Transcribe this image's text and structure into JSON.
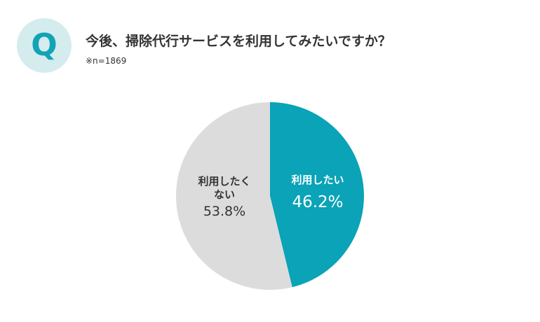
{
  "header": {
    "badge_letter": "Q",
    "question": "今後、掃除代行サービスを利用してみたいですか？",
    "sample_note": "※n=1869"
  },
  "colors": {
    "badge_background": "#d4ecee",
    "badge_text": "#12a3b6",
    "slice_yes": "#0aa3b7",
    "slice_no": "#dcdcdc",
    "label_on_teal": "#ffffff",
    "label_on_gray": "#333333"
  },
  "chart_data": {
    "type": "pie",
    "title": "今後、掃除代行サービスを利用してみたいですか？",
    "slices": [
      {
        "label_lines": [
          "利用したい"
        ],
        "value": 46.2,
        "value_label": "46.2%",
        "color": "#0aa3b7",
        "label_color": "#ffffff"
      },
      {
        "label_lines": [
          "利用したく",
          "ない"
        ],
        "value": 53.8,
        "value_label": "53.8%",
        "color": "#dcdcdc",
        "label_color": "#333333"
      }
    ],
    "start_angle": "12 o'clock",
    "direction": "clockwise"
  }
}
